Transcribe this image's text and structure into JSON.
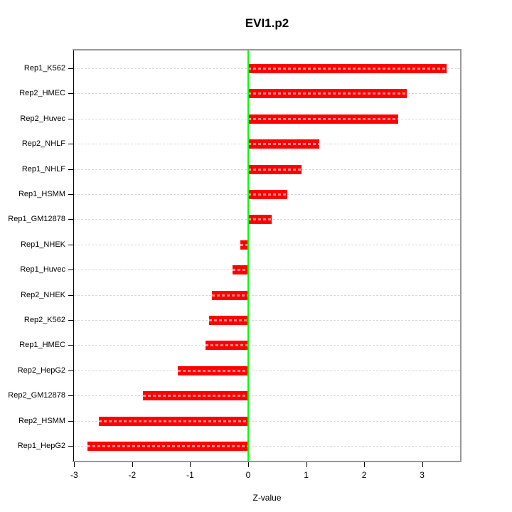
{
  "title": "EVI1.p2",
  "chart_data": {
    "type": "bar",
    "orientation": "horizontal",
    "title": "EVI1.p2",
    "xlabel": "Z-value",
    "categories": [
      "Rep1_K562",
      "Rep2_HMEC",
      "Rep2_Huvec",
      "Rep2_NHLF",
      "Rep1_NHLF",
      "Rep1_HSMM",
      "Rep1_GM12878",
      "Rep1_NHEK",
      "Rep1_Huvec",
      "Rep2_NHEK",
      "Rep2_K562",
      "Rep1_HMEC",
      "Rep2_HepG2",
      "Rep2_GM12878",
      "Rep2_HSMM",
      "Rep1_HepG2"
    ],
    "values": [
      3.42,
      2.74,
      2.59,
      1.23,
      0.92,
      0.67,
      0.41,
      -0.14,
      -0.27,
      -0.62,
      -0.67,
      -0.74,
      -1.22,
      -1.81,
      -2.57,
      -2.77
    ],
    "x_ticks": [
      -3,
      -2,
      -1,
      0,
      1,
      2,
      3
    ],
    "xlim": [
      -3.01,
      3.66
    ],
    "grid": "dashed-horizontal",
    "bar_color": "#ff0000",
    "zero_line_color": "#00ff00",
    "box_color": "#999999",
    "axis_color": "#000000"
  }
}
